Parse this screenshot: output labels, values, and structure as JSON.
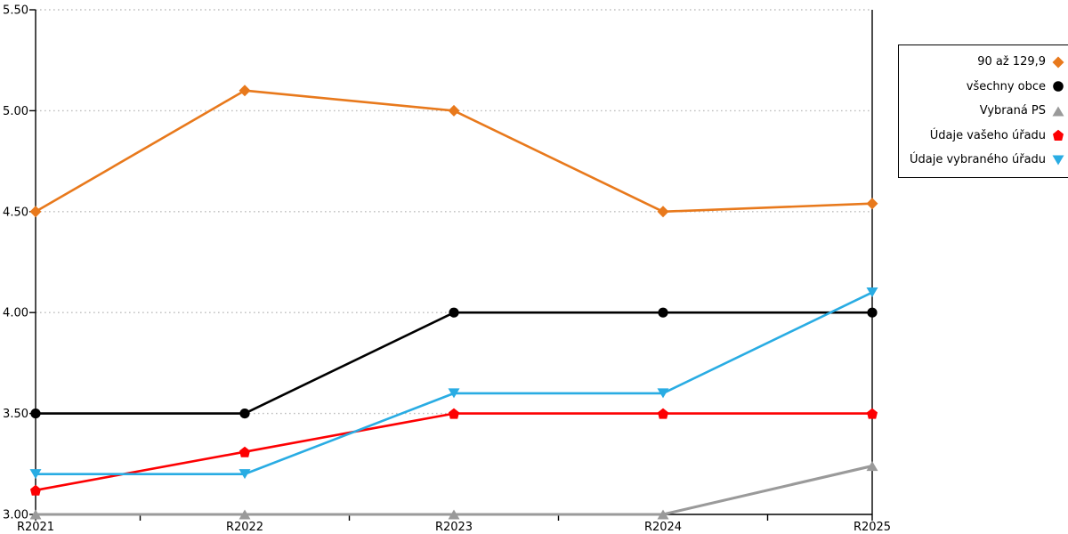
{
  "chart_data": {
    "type": "line",
    "title": "",
    "xlabel": "",
    "ylabel": "",
    "categories": [
      "R2021",
      "R2022",
      "R2023",
      "R2024",
      "R2025"
    ],
    "series": [
      {
        "name": "90 až 129,9",
        "color": "#e8791c",
        "marker": "diamond",
        "values": [
          4.5,
          5.1,
          5.0,
          4.5,
          4.54
        ]
      },
      {
        "name": "všechny obce",
        "color": "#000000",
        "marker": "circle",
        "values": [
          3.5,
          3.5,
          4.0,
          4.0,
          4.0
        ]
      },
      {
        "name": "Vybraná PS",
        "color": "#9a9a9a",
        "marker": "triangle-up",
        "values": [
          3.0,
          3.0,
          3.0,
          3.0,
          3.24
        ]
      },
      {
        "name": "Údaje vašeho úřadu",
        "color": "#fd0002",
        "marker": "pentagon",
        "values": [
          3.12,
          3.31,
          3.5,
          3.5,
          3.5
        ]
      },
      {
        "name": "Údaje vybraného úřadu",
        "color": "#29ace3",
        "marker": "triangle-down",
        "values": [
          3.2,
          3.2,
          3.6,
          3.6,
          4.1
        ]
      }
    ],
    "ylim": [
      3.0,
      5.5
    ],
    "ytick_step": 0.5,
    "ytick_labels": [
      "3.00",
      "3.50",
      "4.00",
      "4.50",
      "5.00",
      "5.50"
    ],
    "grid": "horizontal-dotted",
    "legend_position": "top-right"
  },
  "style": {
    "background": "#ffffff",
    "grid_color": "#bdbdbd",
    "axis_color": "#000000",
    "text_color": "#000000"
  }
}
